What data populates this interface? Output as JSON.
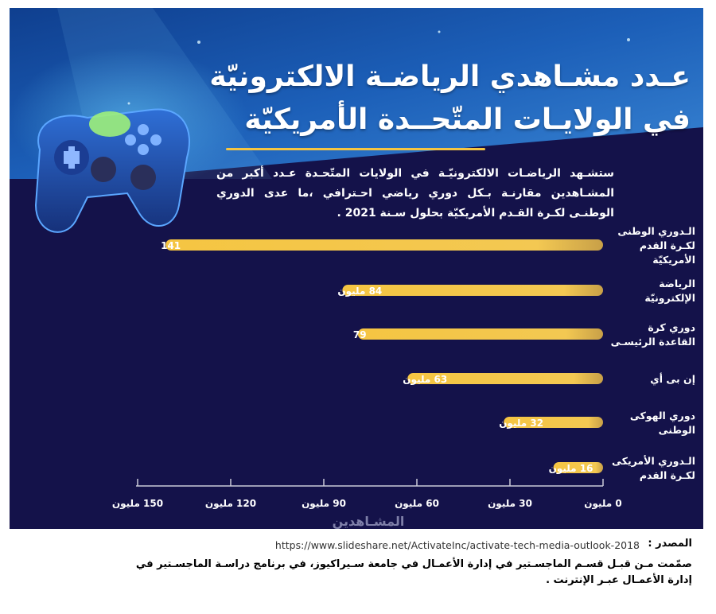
{
  "title_line1": "عـدد مشـاهدي الرياضـة الالكترونيّة",
  "title_line2": "في الولايـات المتّحــدة الأمريكيّة",
  "subtitle": "ستشـهد الرياضـات الالكترونيّـة في الولايات المتّحـدة عـدد أكبر من المشـاهدين مقارنـة بـكل دوري رياضي احـترافي ،ما عدى الدوري الوطنـى لكـرة القـدم الأمريكيّة بحلول سـنة 2021 .",
  "source": {
    "label": "المصدر :",
    "url": "https://www.slideshare.net/ActivateInc/activate-tech-media-outlook-2018"
  },
  "credit": "صمّمت مـن قبـل قسـم الماجسـتير في إدارة الأعمـال في جامعة سـيراكيوز، في برنامج دراسـة الماجسـتير في إدارة الأعمـال عبـر الإنترنت .",
  "colors": {
    "background": "#14124a",
    "bar": "#f5c542",
    "sky_top": "#1c5fb8",
    "sky_light": "#3a86d4"
  },
  "icons": [
    "game-controller-icon"
  ],
  "chart_data": {
    "type": "bar",
    "orientation": "horizontal",
    "categories": [
      [
        "الـدوري الوطنى",
        "لكـرة القدم",
        "الأمريكيّة"
      ],
      [
        "الرياضة",
        "الإلكترونيّة"
      ],
      [
        "دوري كرة",
        "القاعدة الرئيسـى"
      ],
      [
        "إن بى أي"
      ],
      [
        "دوري الهوكى",
        "الوطنى"
      ],
      [
        "الـدوري الأمريكى",
        "لكـرة القدم"
      ]
    ],
    "values": [
      141,
      84,
      79,
      63,
      32,
      16
    ],
    "data_labels": [
      "141",
      "84 مليون",
      "79",
      "63 مليون",
      "32 مليون",
      "16 مليون"
    ],
    "xlim": [
      0,
      160
    ],
    "xticks": [
      0,
      30,
      60,
      90,
      120,
      150
    ],
    "xtick_labels": [
      "0 مليون",
      "30 مليون",
      "60 مليون",
      "90 مليون",
      "120 مليون",
      "150 مليون"
    ],
    "xlabel": "المشـاهدين",
    "ylabel": "",
    "grid": false,
    "axis_direction": "right-to-left"
  }
}
